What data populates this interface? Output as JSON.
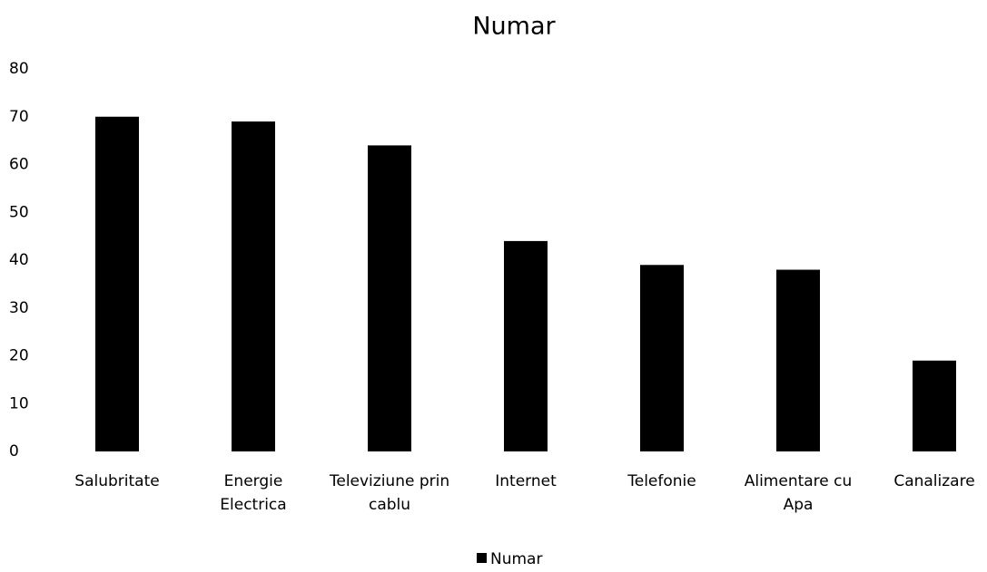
{
  "chart_data": {
    "type": "bar",
    "title": "Numar",
    "categories": [
      "Salubritate",
      "Energie Electrica",
      "Televiziune prin cablu",
      "Internet",
      "Telefonie",
      "Alimentare cu Apa",
      "Canalizare"
    ],
    "series": [
      {
        "name": "Numar",
        "color": "#000000",
        "values": [
          70,
          69,
          64,
          44,
          39,
          38,
          19
        ]
      }
    ],
    "ylim": [
      0,
      80
    ],
    "yticks": [
      0,
      10,
      20,
      30,
      40,
      50,
      60,
      70,
      80
    ],
    "grid": false,
    "legend": "bottom"
  }
}
